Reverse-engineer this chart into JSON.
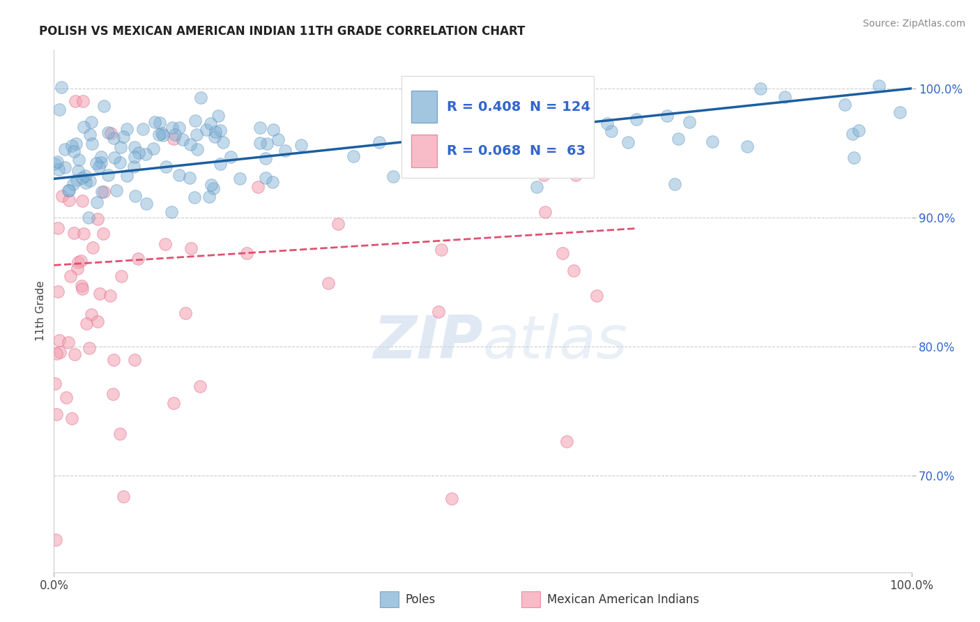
{
  "title": "POLISH VS MEXICAN AMERICAN INDIAN 11TH GRADE CORRELATION CHART",
  "source": "Source: ZipAtlas.com",
  "ylabel": "11th Grade",
  "y_tick_labels": [
    "70.0%",
    "80.0%",
    "90.0%",
    "100.0%"
  ],
  "y_tick_values": [
    0.7,
    0.8,
    0.9,
    1.0
  ],
  "x_lim": [
    0.0,
    1.0
  ],
  "y_lim": [
    0.625,
    1.03
  ],
  "x_tick_labels": [
    "0.0%",
    "100.0%"
  ],
  "x_tick_values": [
    0.0,
    1.0
  ],
  "legend_r_blue": "R = 0.408",
  "legend_n_blue": "N = 124",
  "legend_r_pink": "R = 0.068",
  "legend_n_pink": "N =  63",
  "legend_label_blue": "Poles",
  "legend_label_pink": "Mexican American Indians",
  "blue_color": "#7BAFD4",
  "pink_color": "#F4A0B0",
  "blue_marker_edge": "#5B8DB8",
  "pink_marker_edge": "#E07090",
  "blue_line_color": "#1B5EA0",
  "pink_line_color": "#E05070",
  "watermark_zip": "ZIP",
  "watermark_atlas": "atlas",
  "grid_color": "#CCCCCC",
  "title_color": "#222222",
  "ytick_color": "#3366CC",
  "source_color": "#888888"
}
